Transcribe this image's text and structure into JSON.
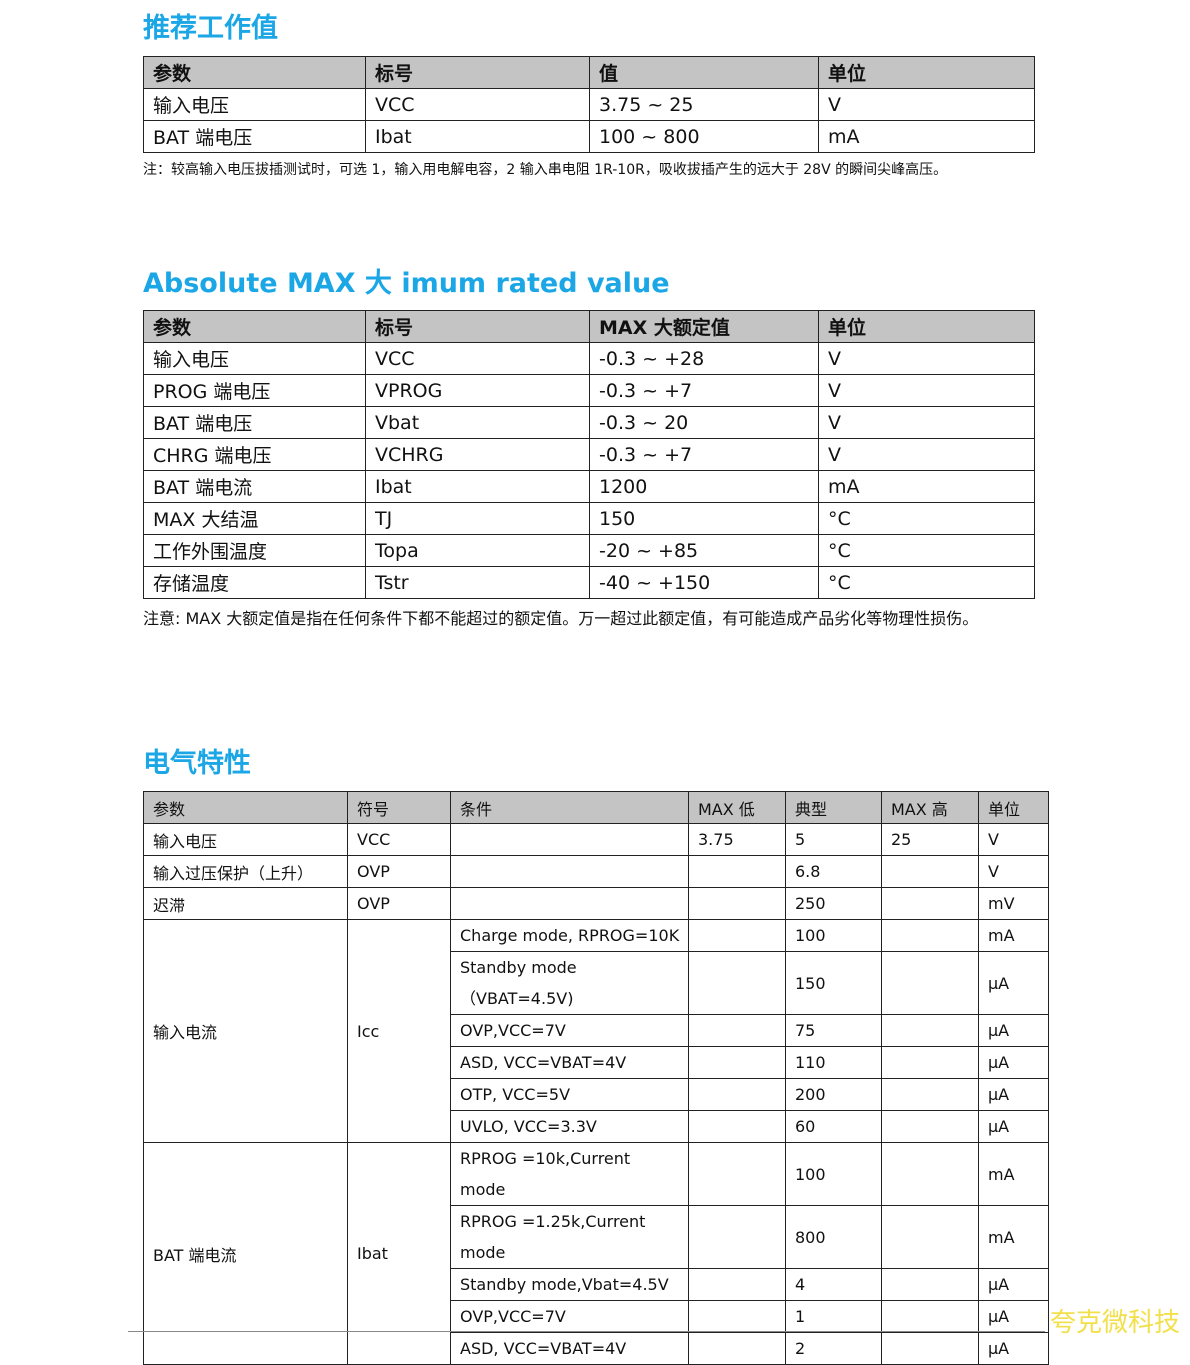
{
  "section1": {
    "title": "推荐工作值",
    "headers": [
      "参数",
      "标号",
      "值",
      "单位"
    ],
    "rows": [
      [
        "输入电压",
        "VCC",
        "3.75 ~ 25",
        "V"
      ],
      [
        "BAT  端电压",
        "Ibat",
        "100 ~ 800",
        "mA"
      ]
    ],
    "note": "注：较高输入电压拔插测试时，可选 1，输入用电解电容，2 输入串电阻 1R-10R，吸收拔插产生的远大于 28V 的瞬间尖峰高压。"
  },
  "section2": {
    "title": "Absolute MAX 大 imum rated value",
    "headers": [
      "参数",
      "标号",
      "MAX 大额定值",
      "单位"
    ],
    "rows": [
      [
        "输入电压",
        "VCC",
        "-0.3 ~ +28",
        "V"
      ],
      [
        "PROG 端电压",
        "VPROG",
        "-0.3 ~ +7",
        "V"
      ],
      [
        "BAT  端电压",
        "Vbat",
        "-0.3 ~ 20",
        "V"
      ],
      [
        "CHRG  端电压",
        "VCHRG",
        "-0.3 ~ +7",
        "V"
      ],
      [
        "BAT  端电流",
        "Ibat",
        "1200",
        "mA"
      ],
      [
        "MAX 大结温",
        "TJ",
        "150",
        "°C"
      ],
      [
        "工作外围温度",
        "Topa",
        "-20 ~ +85",
        "°C"
      ],
      [
        "存储温度",
        "Tstr",
        "-40 ~ +150",
        "°C"
      ]
    ],
    "note": "注意:    MAX 大额定值是指在任何条件下都不能超过的额定值。万一超过此额定值，有可能造成产品劣化等物理性损伤。"
  },
  "section3": {
    "title": "电气特性",
    "headers": [
      "参数",
      "符号",
      "条件",
      "MAX 低",
      "典型",
      "MAX 高",
      "单位"
    ],
    "simple_rows": [
      [
        "输入电压",
        "VCC",
        "",
        "3.75",
        "5",
        "25",
        "V"
      ],
      [
        "输入过压保护（上升）",
        "OVP",
        "",
        "",
        "6.8",
        "",
        "V"
      ],
      [
        "迟滞",
        "OVP",
        "",
        "",
        "250",
        "",
        "mV"
      ]
    ],
    "groups": [
      {
        "param": "输入电流",
        "symbol": "Icc",
        "rows": [
          [
            "Charge mode, RPROG=10K",
            "",
            "100",
            "",
            "mA"
          ],
          [
            "Standby mode （VBAT=4.5V)",
            "",
            "150",
            "",
            "µA"
          ],
          [
            "OVP,VCC=7V",
            "",
            "75",
            "",
            "µA"
          ],
          [
            "ASD,    VCC=VBAT=4V",
            "",
            "110",
            "",
            "µA"
          ],
          [
            "OTP,    VCC=5V",
            "",
            "200",
            "",
            "µA"
          ],
          [
            "UVLO, VCC=3.3V",
            "",
            "60",
            "",
            "µA"
          ]
        ]
      },
      {
        "param": "BAT 端电流",
        "symbol": "Ibat",
        "rows": [
          [
            "RPROG =10k,Current mode",
            "",
            "100",
            "",
            "mA"
          ],
          [
            "RPROG =1.25k,Current mode",
            "",
            "800",
            "",
            "mA"
          ],
          [
            "Standby mode,Vbat=4.5V",
            "",
            "4",
            "",
            "µA"
          ],
          [
            "OVP,VCC=7V",
            "",
            "1",
            "",
            "µA"
          ],
          [
            "ASD,    VCC=VBAT=4V",
            "",
            "2",
            "",
            "µA"
          ]
        ]
      }
    ]
  },
  "watermark": "夸克微科技",
  "colors": {
    "heading": "#1ba6e6",
    "header_bg": "#c4c4c4",
    "watermark": "#f2e04a"
  }
}
